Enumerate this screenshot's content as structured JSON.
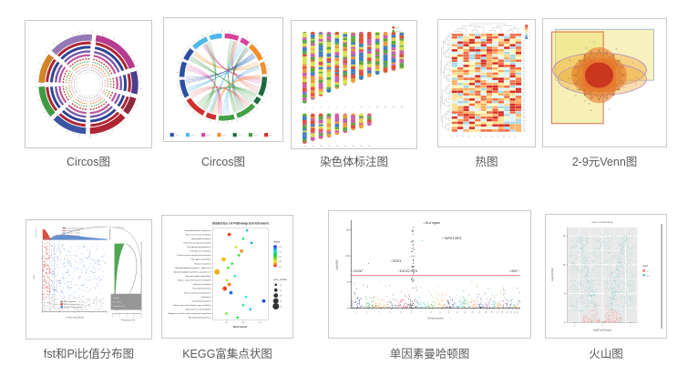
{
  "panels": [
    {
      "id": "circos1",
      "label": "Circos图"
    },
    {
      "id": "circos2",
      "label": "Circos图"
    },
    {
      "id": "chromo",
      "label": "染色体标注图"
    },
    {
      "id": "heatmap",
      "label": "热图"
    },
    {
      "id": "venn",
      "label": "2-9元Venn图"
    },
    {
      "id": "fstpi",
      "label": "fst和Pi比值分布图"
    },
    {
      "id": "kegg",
      "label": "KEGG富集点状图"
    },
    {
      "id": "manhattan",
      "label": "单因素曼哈顿图"
    },
    {
      "id": "volcano",
      "label": "火山图"
    }
  ],
  "chart_data": [
    {
      "id": "circos1",
      "type": "circos-rings",
      "seed": 7,
      "outer_segments": [
        {
          "color": "#d08428",
          "span": 34
        },
        {
          "color": "#9678b6",
          "span": 50
        },
        {
          "color": "#b53c8e",
          "span": 58
        },
        {
          "color": "#4a3f8e",
          "span": 26
        },
        {
          "color": "#8e2a3c",
          "span": 20
        },
        {
          "color": "#b02533",
          "span": 44
        },
        {
          "color": "#3b55a3",
          "span": 40
        },
        {
          "color": "#3f9a44",
          "span": 36
        }
      ],
      "rings": [
        {
          "color": "#b02533",
          "width": 3
        },
        {
          "color": "#2f4396",
          "width": 3
        },
        {
          "color": "#7a5aa8",
          "width": 2.4
        },
        {
          "color": "#c0549a",
          "width": 2.2
        },
        {
          "color": "#c94040",
          "width": 1.4,
          "dash": "2 1.2"
        },
        {
          "color": "#7cb87c",
          "width": 1.4,
          "dash": "1.6 1"
        },
        {
          "color": "#e69138",
          "width": 1.2,
          "dash": "1.4 1"
        },
        {
          "color": "#d5a0c0",
          "width": 1.2,
          "dash": "1.2 0.9"
        },
        {
          "color": "#9a9a9a",
          "width": 0.8,
          "dash": "1 0.8"
        }
      ]
    },
    {
      "id": "circos2",
      "type": "circos-chords",
      "seed": 11,
      "segments": [
        {
          "color": "#2c4fa3",
          "span": 40
        },
        {
          "color": "#4db8e8",
          "span": 42
        },
        {
          "color": "#d8439a",
          "span": 34
        },
        {
          "color": "#ef8f2e",
          "span": 44
        },
        {
          "color": "#1d6b40",
          "span": 38
        },
        {
          "color": "#43a047",
          "span": 52
        },
        {
          "color": "#cf2f2f",
          "span": 46
        },
        {
          "color": "#2c4fa3",
          "span": 24
        }
      ],
      "chords": [
        {
          "a1": 15,
          "a2": 160,
          "color": "#43a047"
        },
        {
          "a1": 30,
          "a2": 200,
          "color": "#4db8e8"
        },
        {
          "a1": 55,
          "a2": 250,
          "color": "#4db8e8"
        },
        {
          "a1": 70,
          "a2": 310,
          "color": "#ef8f2e"
        },
        {
          "a1": 95,
          "a2": 330,
          "color": "#d8439a"
        },
        {
          "a1": 110,
          "a2": 20,
          "color": "#e86a6a"
        },
        {
          "a1": 130,
          "a2": 300,
          "color": "#43a047"
        },
        {
          "a1": 150,
          "a2": 40,
          "color": "#1d6b40"
        },
        {
          "a1": 175,
          "a2": 75,
          "color": "#4db8e8"
        },
        {
          "a1": 195,
          "a2": 90,
          "color": "#ef8f2e"
        },
        {
          "a1": 220,
          "a2": 120,
          "color": "#43a047"
        },
        {
          "a1": 240,
          "a2": 140,
          "color": "#e86a6a"
        },
        {
          "a1": 265,
          "a2": 55,
          "color": "#2c4fa3"
        },
        {
          "a1": 285,
          "a2": 185,
          "color": "#d8439a"
        },
        {
          "a1": 335,
          "a2": 210,
          "color": "#43a047"
        }
      ],
      "legend": [
        {
          "color": "#2c4fa3",
          "label": "chr1"
        },
        {
          "color": "#4db8e8",
          "label": "chr2"
        },
        {
          "color": "#d8439a",
          "label": "chr3"
        },
        {
          "color": "#ef8f2e",
          "label": "chr4"
        },
        {
          "color": "#1d6b40",
          "label": "chr5"
        },
        {
          "color": "#43a047",
          "label": "chr6"
        },
        {
          "color": "#cf2f2f",
          "label": "chr7"
        }
      ]
    },
    {
      "id": "chromo",
      "type": "chromosome-map",
      "seed": 23,
      "row1_heights": [
        80,
        76,
        72,
        68,
        64,
        60,
        57,
        54,
        51,
        48,
        46,
        44,
        42
      ],
      "row2_heights": [
        34,
        31,
        29,
        27,
        24,
        22,
        19,
        17,
        14
      ],
      "row1_labels": [
        "1",
        "2",
        "3",
        "4",
        "5",
        "6",
        "7",
        "8",
        "9",
        "10",
        "11",
        "12",
        "13"
      ],
      "row2_labels": [
        "14",
        "15",
        "16",
        "17",
        "18",
        "19",
        "20",
        "21",
        "22"
      ],
      "palette": [
        "#5aa83c",
        "#d8e04a",
        "#3f7fbf",
        "#e05038",
        "#ef9a3a",
        "#cf5fa6"
      ],
      "legend": [
        {
          "color": "#e05038",
          "label": "gene"
        },
        {
          "color": "#5aa83c",
          "label": "repeat"
        }
      ]
    },
    {
      "id": "heatmap",
      "type": "heatmap",
      "seed": 5,
      "cols": 12,
      "rows": 38,
      "palette": [
        "#a50026",
        "#d73027",
        "#f46d43",
        "#fdae61",
        "#fee090",
        "#ffffbf",
        "#e0f3f8",
        "#abd9e9",
        "#74add1"
      ],
      "legend_ticks": [
        "4",
        "2",
        "0",
        "-2",
        "-4"
      ],
      "row_label_prefix": "g",
      "col_label_prefix": "s"
    },
    {
      "id": "venn",
      "type": "venn",
      "seed": 9,
      "rect_blue": {
        "x": 0.1,
        "y": 0.08,
        "w": 0.8,
        "h": 0.4,
        "stroke": "#9fb6cc",
        "fill": "rgba(238,225,110,0.45)"
      },
      "rect_red": {
        "x": 0.07,
        "y": 0.1,
        "w": 0.42,
        "h": 0.72,
        "stroke": "#d45f4f",
        "fill": "rgba(238,225,110,0.5)"
      },
      "ellipses": [
        {
          "cx": 0.46,
          "cy": 0.4,
          "rx": 0.38,
          "ry": 0.135,
          "stroke": "#b08bbf",
          "fill": "rgba(240,170,60,0.45)"
        },
        {
          "cx": 0.48,
          "cy": 0.47,
          "rx": 0.36,
          "ry": 0.125,
          "stroke": "#b08bbf",
          "fill": "rgba(240,170,60,0.40)"
        }
      ],
      "flower": {
        "cx": 0.455,
        "cy": 0.44,
        "r": 0.14,
        "off": 0.085,
        "fill": "rgba(230,115,40,0.55)"
      },
      "star": {
        "cx": 0.455,
        "cy": 0.44,
        "r1": 0.205,
        "r2": 0.16,
        "n": 20,
        "stroke": "#567d2e",
        "fill": "rgba(233,120,40,0.35)"
      },
      "core": {
        "cx": 0.455,
        "cy": 0.44,
        "rx": 0.115,
        "ry": 0.1,
        "fill": "rgba(196,40,28,0.82)"
      },
      "num_count": 26
    },
    {
      "id": "fstpi",
      "type": "fstpi",
      "seed": 31,
      "colors": {
        "blue": "#4a7cc7",
        "red": "#d23b2e",
        "gray": "#9a9a9a",
        "green": "#3f9a3f"
      },
      "legend_top": [
        {
          "color": "#333333",
          "label": "0.05 quantile: 10.09"
        },
        {
          "color": "#d23b2e",
          "label": "pi ratio > 1 (5%)"
        },
        {
          "color": "#4a7cc7",
          "label": "pi ratio < 1 (5%)"
        },
        {
          "color": "#999999",
          "label": "Correlation (%)"
        }
      ],
      "legend_bottom": [
        {
          "color": "#9a9a9a",
          "label": "Whole genome"
        },
        {
          "color": "#d23b2e",
          "label": "Selected Region(up)"
        },
        {
          "color": "#4a7cc7",
          "label": "Selected Region(down)"
        }
      ],
      "box_lines": [
        "Top 5%",
        "Fst > 0.25",
        "Proportion (%)"
      ],
      "xlabel": "Pi ratio (pop1/pop2)",
      "ylabel": "Fst",
      "right_xlabel": "Frequency (%)",
      "top_ylabel": "Frequency (%)",
      "corr_label": "Correlation (%)",
      "right_ticks": [
        "0",
        "5",
        "10",
        "15",
        "20"
      ]
    },
    {
      "id": "kegg",
      "type": "dotplot",
      "seed": 13,
      "title": "Statistics of Pathway Enrichment",
      "xlabel": "Rich factor",
      "pathways": [
        "Terpenoid backbone biosynthesis",
        "Starch and sucrose metabolism",
        "Sphingolipid metabolism",
        "Plant hormone signal transduction",
        "Phenylpropanoid biosynthesis",
        "Phenylalanine metabolism",
        "Pentose and glucuronate interconversions",
        "Other glycan degradation",
        "Nitrogen metabolism",
        "Glycosphingolipid biosynthesis - globo series",
        "Glycosphingolipid biosynthesis - ganglio series",
        "Glycosaminoglycan degradation",
        "Glycine, serine and threonine metabolism",
        "Galactose metabolism",
        "Flavonoid biosynthesis",
        "Flavone and flavonol biosynthesis",
        "Endocytosis",
        "Carotenoid biosynthesis",
        "Amino sugar and nucleotide sugar metabolism",
        "alpha-Linolenic acid metabolism",
        "Ubiquinone and other terpenoid-quinone biosynthesis",
        "Monoterpenoid biosynthesis"
      ],
      "points": [
        {
          "row": 0,
          "x": 0.62,
          "q": 0.8,
          "s": 1
        },
        {
          "row": 1,
          "x": 0.3,
          "q": 0.05,
          "s": 2
        },
        {
          "row": 2,
          "x": 0.55,
          "q": 0.6,
          "s": 1
        },
        {
          "row": 3,
          "x": 0.7,
          "q": 0.85,
          "s": 1
        },
        {
          "row": 4,
          "x": 0.42,
          "q": 0.3,
          "s": 1
        },
        {
          "row": 5,
          "x": 0.52,
          "q": 0.15,
          "s": 2
        },
        {
          "row": 6,
          "x": 0.47,
          "q": 0.5,
          "s": 1
        },
        {
          "row": 7,
          "x": 0.2,
          "q": 0.2,
          "s": 3
        },
        {
          "row": 8,
          "x": 0.35,
          "q": 0.55,
          "s": 1
        },
        {
          "row": 9,
          "x": 0.28,
          "q": 0.45,
          "s": 1
        },
        {
          "row": 10,
          "x": 0.08,
          "q": 0.18,
          "s": 4
        },
        {
          "row": 11,
          "x": 0.4,
          "q": 0.7,
          "s": 1
        },
        {
          "row": 12,
          "x": 0.26,
          "q": 0.35,
          "s": 1
        },
        {
          "row": 13,
          "x": 0.3,
          "q": 0.12,
          "s": 2
        },
        {
          "row": 14,
          "x": 0.22,
          "q": 0.05,
          "s": 3
        },
        {
          "row": 15,
          "x": 0.33,
          "q": 0.9,
          "s": 2
        },
        {
          "row": 16,
          "x": 0.6,
          "q": 0.75,
          "s": 1
        },
        {
          "row": 17,
          "x": 0.92,
          "q": 0.95,
          "s": 2
        },
        {
          "row": 18,
          "x": 0.55,
          "q": 0.65,
          "s": 1
        },
        {
          "row": 19,
          "x": 0.68,
          "q": 0.8,
          "s": 1
        },
        {
          "row": 20,
          "x": 0.25,
          "q": 0.4,
          "s": 1
        },
        {
          "row": 21,
          "x": 0.45,
          "q": 0.55,
          "s": 1
        }
      ],
      "xticks": [
        {
          "f": 0.25,
          "label": "0.1"
        },
        {
          "f": 0.55,
          "label": "0.2"
        },
        {
          "f": 0.85,
          "label": "0.3"
        }
      ],
      "qvalue_legend": {
        "title": "qvalue",
        "ticks": [
          "1.00",
          "0.75",
          "0.50",
          "0.25",
          "0.00"
        ]
      },
      "size_legend": {
        "title": "gene_number",
        "sizes": [
          "10",
          "20",
          "30",
          "40",
          "50"
        ]
      }
    },
    {
      "id": "manhattan",
      "type": "manhattan",
      "seed": 3,
      "ylabel": "-log10(P)",
      "xlabel": "Chromosome",
      "yticks": [
        0,
        5,
        10,
        15
      ],
      "ymax": 16.5,
      "threshold": 6.3,
      "threshold_color": "#e06666",
      "chrom_colors": [
        "#2b3f9e",
        "#3ba03b",
        "#f08726",
        "#7d7d7d",
        "#e02565",
        "#141414",
        "#58c5e9",
        "#7cc242",
        "#ef8b2c",
        "#1f2d7a",
        "#45b8dc",
        "#2f9e44",
        "#ef8b2c",
        "#28337e",
        "#8e44ad",
        "#20b2aa",
        "#ef8b2c",
        "#5f6a6a",
        "#7b3fa0",
        "#16a085",
        "#d4a017",
        "#1e5c3a"
      ],
      "chrom_labels": [
        "1",
        "2",
        "3",
        "4",
        "5",
        "6",
        "7",
        "8",
        "9",
        "10",
        "11",
        "12",
        "13",
        "14",
        "15",
        "16",
        "17",
        "18",
        "19",
        "20",
        "21",
        "22"
      ],
      "annotations": [
        {
          "label": "HLA region",
          "fx": 0.44,
          "v": 16.1,
          "anchor": "start"
        },
        {
          "label": "TNPO3-IRF5",
          "fx": 0.55,
          "v": 13.2,
          "anchor": "start"
        },
        {
          "label": "STAT4",
          "fx": 0.245,
          "v": 8.8,
          "anchor": "start"
        },
        {
          "label": "CD247",
          "fx": 0.015,
          "v": 6.9,
          "anchor": "start"
        },
        {
          "label": "EXOC2-IRF4",
          "fx": 0.29,
          "v": 6.9,
          "anchor": "start"
        },
        {
          "label": "CD47",
          "fx": 0.985,
          "v": 6.9,
          "anchor": "end"
        }
      ],
      "spike": {
        "chrom": 6,
        "top": 15.7,
        "count": 34
      },
      "extra_points": [
        {
          "chrom": 7,
          "v": 12.9
        },
        {
          "chrom": 2,
          "v": 8.5
        },
        {
          "chrom": 6,
          "v": 14.9
        }
      ]
    },
    {
      "id": "volcano",
      "type": "volcano",
      "seed": 17,
      "title": "case vs control   ■ sig",
      "ylabel": "-log10(FDR)",
      "xlabel": "log2(FoldChange)",
      "yticks": [
        0,
        5,
        10,
        15
      ],
      "ymax": 16.5,
      "xticks": [
        {
          "f": 0.1,
          "label": "-5"
        },
        {
          "f": 0.5,
          "label": "0"
        },
        {
          "f": 0.9,
          "label": "5"
        }
      ],
      "colors": {
        "sig": "#63c5c0",
        "nonsig": "#f4776b",
        "panel": "#e9e9e9"
      },
      "legend": {
        "title": "signif",
        "entries": [
          {
            "color": "#f4776b",
            "label": "no"
          },
          {
            "color": "#63c5c0",
            "label": "yes"
          }
        ]
      }
    }
  ]
}
